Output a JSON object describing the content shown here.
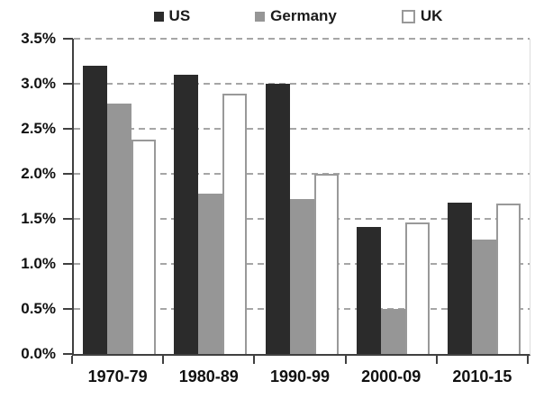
{
  "chart_data": {
    "type": "bar",
    "title": "",
    "xlabel": "",
    "ylabel": "",
    "categories": [
      "1970-79",
      "1980-89",
      "1990-99",
      "2000-09",
      "2010-15"
    ],
    "series": [
      {
        "name": "US",
        "color": "#2b2b2b",
        "border_color": "#2b2b2b",
        "values": [
          3.2,
          3.1,
          3.0,
          1.41,
          1.68
        ]
      },
      {
        "name": "Germany",
        "color": "#969696",
        "border_color": "#969696",
        "values": [
          2.78,
          1.78,
          1.72,
          0.5,
          1.27
        ]
      },
      {
        "name": "UK",
        "color": "#ffffff",
        "border_color": "#999999",
        "values": [
          2.38,
          2.89,
          2.0,
          1.46,
          1.67
        ]
      }
    ],
    "ylim": [
      0,
      3.5
    ],
    "ytick_step": 0.5,
    "yticklabels": [
      "0.0%",
      "0.5%",
      "1.0%",
      "1.5%",
      "2.0%",
      "2.5%",
      "3.0%",
      "3.5%"
    ],
    "grid": "horizontal-dashed",
    "legend_position": "top"
  },
  "colors": {
    "axis": "#404040",
    "gridline": "#a6a6a6",
    "text": "#1a1a1a",
    "background": "#ffffff"
  }
}
